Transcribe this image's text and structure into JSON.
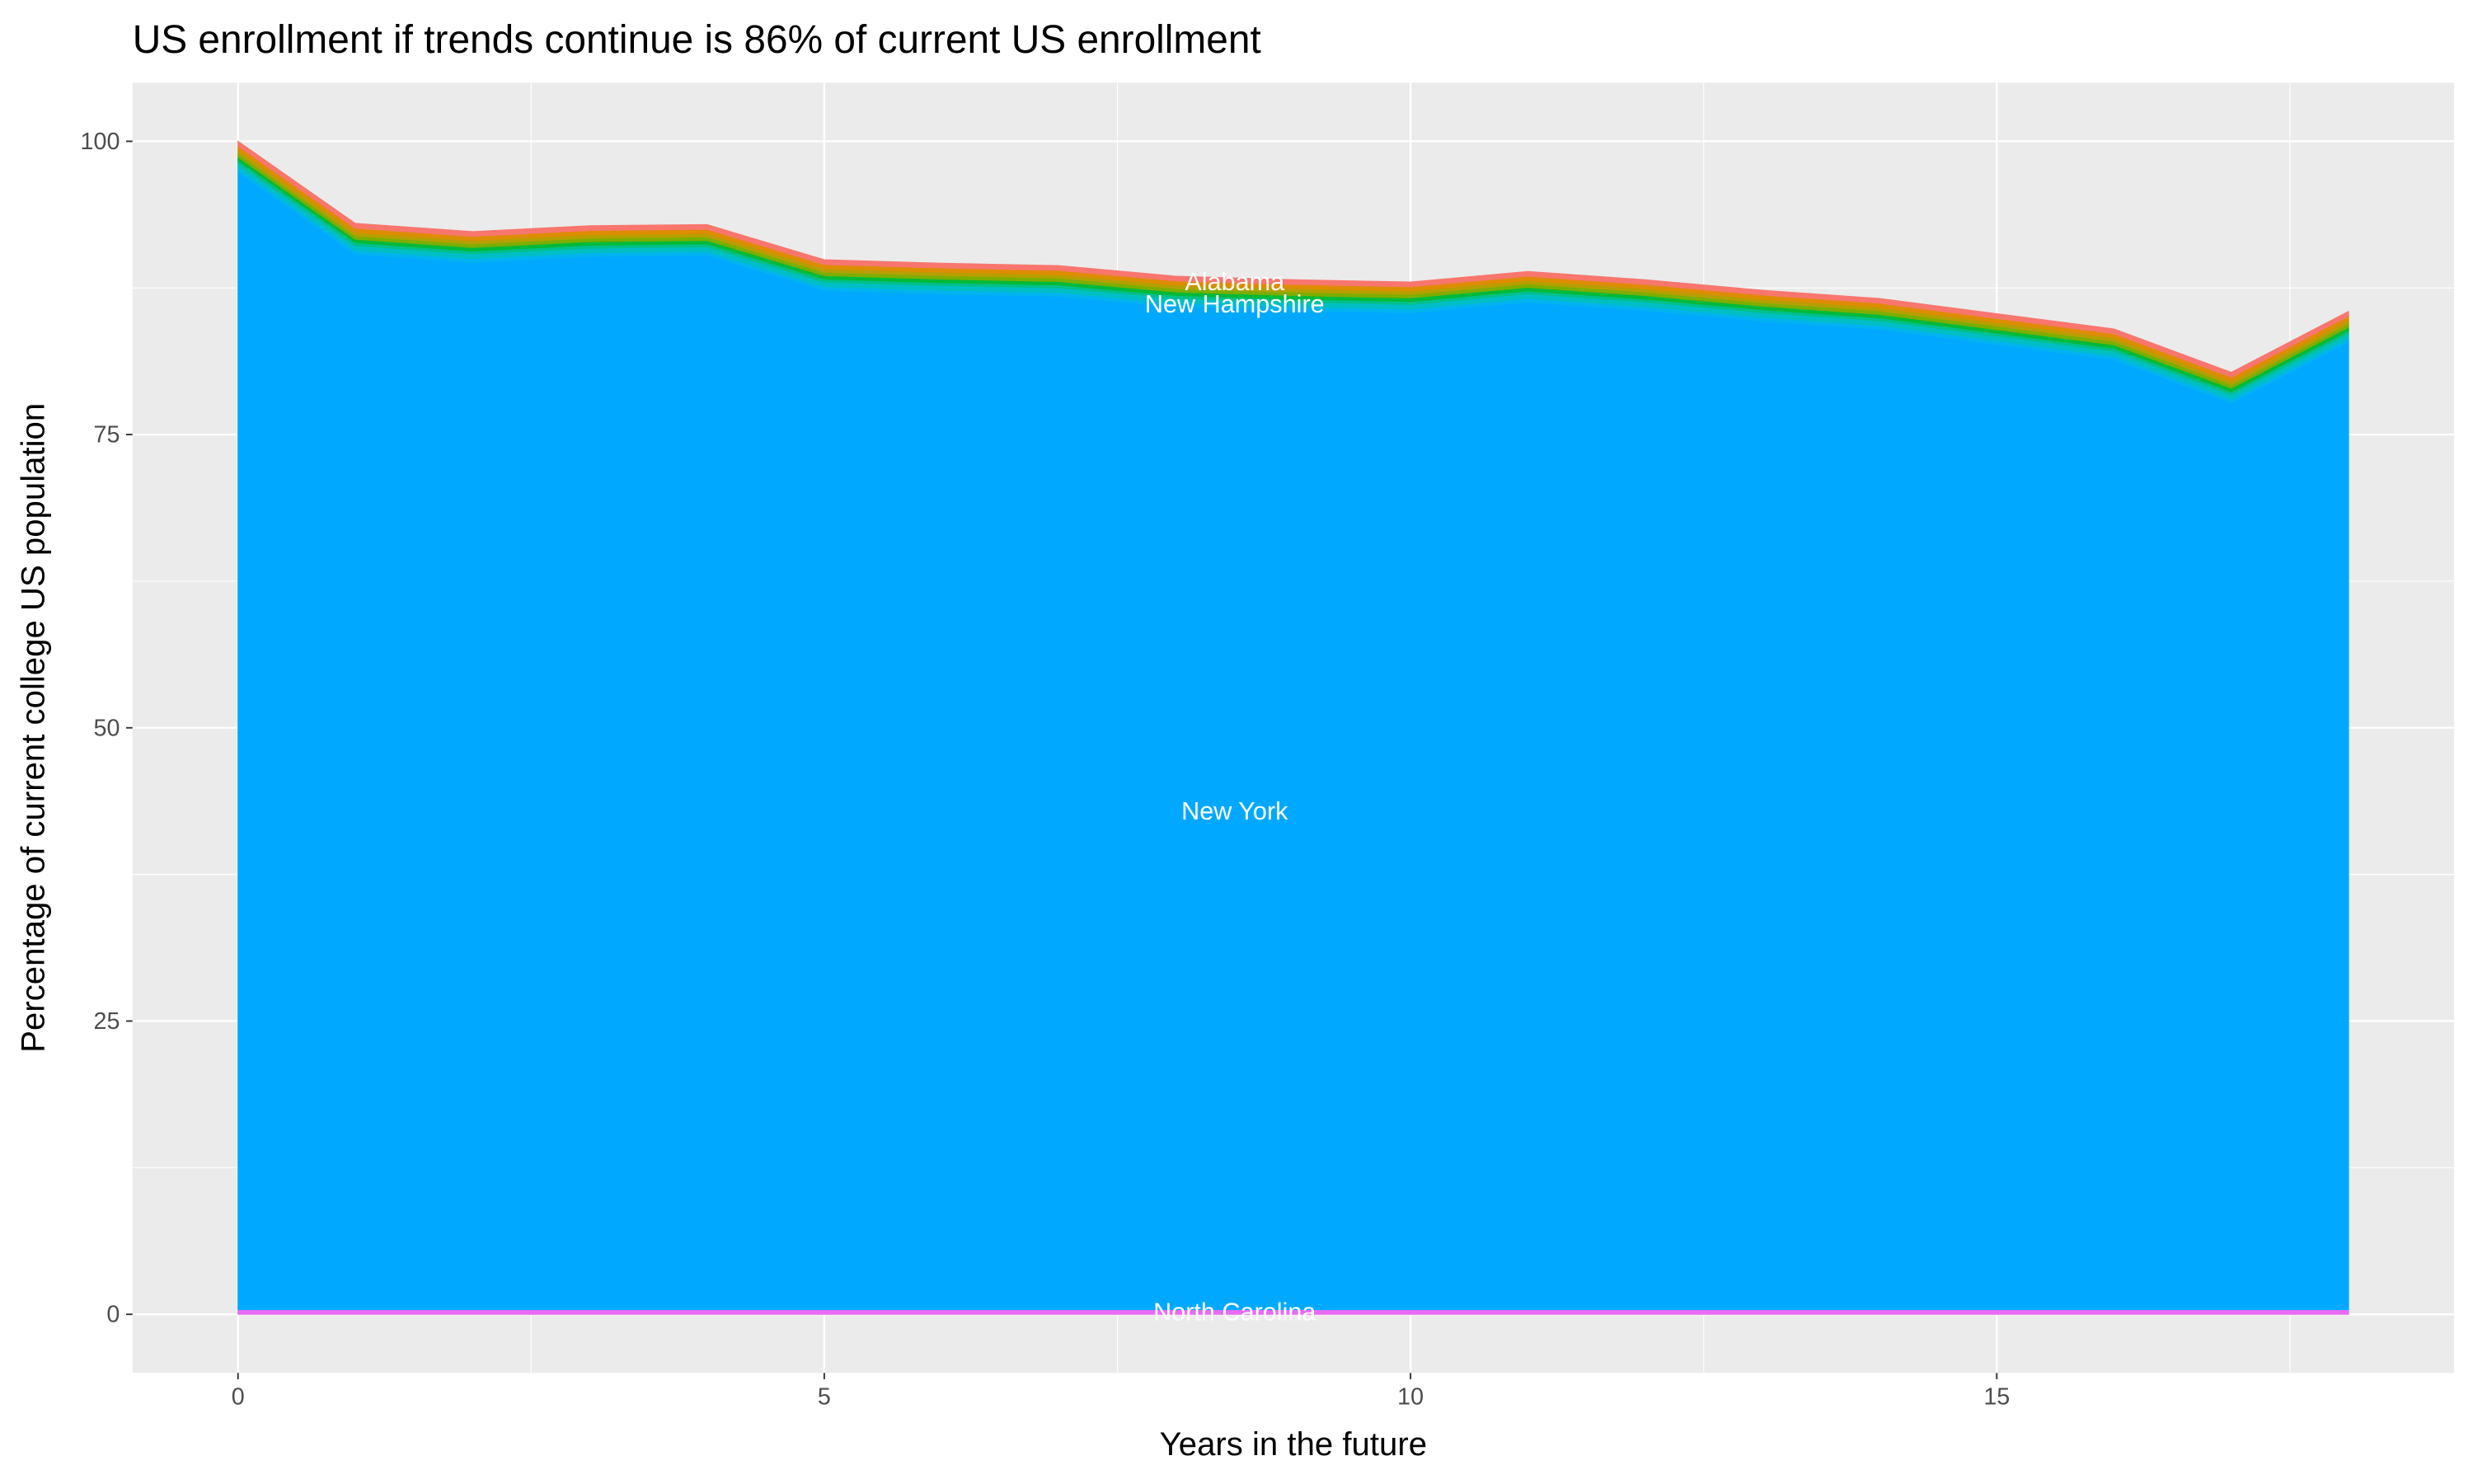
{
  "chart_data": {
    "type": "area",
    "stacked": true,
    "title": "US enrollment if trends continue is 86% of current US enrollment",
    "xlabel": "Years in the future",
    "ylabel": "Percentage of current college US population",
    "xlim": [
      -0.9,
      18.9
    ],
    "ylim": [
      -5,
      105
    ],
    "xticks": [
      0,
      5,
      10,
      15
    ],
    "yticks": [
      0,
      25,
      50,
      75,
      100
    ],
    "grid": true,
    "legend": "none",
    "background": "#EBEBEB",
    "x": [
      0,
      1,
      2,
      3,
      4,
      5,
      6,
      7,
      8,
      9,
      10,
      11,
      12,
      13,
      14,
      15,
      16,
      17,
      18
    ],
    "series": [
      {
        "name": "North Carolina",
        "color": "#E76BF3",
        "label_y": 0.3,
        "values": [
          0.4,
          0.4,
          0.4,
          0.4,
          0.4,
          0.4,
          0.4,
          0.4,
          0.4,
          0.4,
          0.4,
          0.4,
          0.4,
          0.4,
          0.4,
          0.4,
          0.4,
          0.4,
          0.4
        ]
      },
      {
        "name": "New York",
        "color": "#00A9FF",
        "label_y": 43,
        "values": [
          97.0,
          90.0,
          89.3,
          89.8,
          89.9,
          86.9,
          86.6,
          86.4,
          85.5,
          85.2,
          85.0,
          85.9,
          85.2,
          84.3,
          83.6,
          82.3,
          81.0,
          77.3,
          82.5
        ]
      },
      {
        "color": "#00B4F0",
        "values": [
          0.3,
          0.3,
          0.3,
          0.3,
          0.3,
          0.3,
          0.3,
          0.3,
          0.3,
          0.3,
          0.3,
          0.3,
          0.3,
          0.3,
          0.3,
          0.3,
          0.3,
          0.3,
          0.3
        ]
      },
      {
        "name": "New Hampshire",
        "color": "#00BFC4",
        "label_y": 86.2,
        "values": [
          0.4,
          0.4,
          0.4,
          0.4,
          0.4,
          0.4,
          0.4,
          0.4,
          0.4,
          0.4,
          0.4,
          0.4,
          0.4,
          0.4,
          0.4,
          0.4,
          0.4,
          0.4,
          0.4
        ]
      },
      {
        "color": "#00C08B",
        "values": [
          0.25,
          0.25,
          0.25,
          0.25,
          0.25,
          0.25,
          0.25,
          0.25,
          0.25,
          0.25,
          0.25,
          0.25,
          0.25,
          0.25,
          0.25,
          0.25,
          0.25,
          0.25,
          0.25
        ]
      },
      {
        "color": "#00BA38",
        "values": [
          0.3,
          0.3,
          0.3,
          0.3,
          0.3,
          0.3,
          0.3,
          0.3,
          0.3,
          0.3,
          0.3,
          0.3,
          0.3,
          0.3,
          0.3,
          0.3,
          0.3,
          0.3,
          0.3
        ]
      },
      {
        "color": "#7CAE00",
        "values": [
          0.3,
          0.3,
          0.3,
          0.3,
          0.3,
          0.3,
          0.3,
          0.3,
          0.3,
          0.3,
          0.3,
          0.3,
          0.3,
          0.3,
          0.3,
          0.3,
          0.3,
          0.3,
          0.3
        ]
      },
      {
        "color": "#B79F00",
        "values": [
          0.3,
          0.3,
          0.3,
          0.3,
          0.3,
          0.3,
          0.3,
          0.3,
          0.3,
          0.3,
          0.3,
          0.3,
          0.3,
          0.3,
          0.3,
          0.3,
          0.3,
          0.3,
          0.3
        ]
      },
      {
        "color": "#DE8C00",
        "values": [
          0.35,
          0.35,
          0.35,
          0.35,
          0.35,
          0.35,
          0.35,
          0.35,
          0.35,
          0.35,
          0.35,
          0.35,
          0.35,
          0.35,
          0.35,
          0.35,
          0.35,
          0.35,
          0.35
        ]
      },
      {
        "name": "Alabama",
        "color": "#F8766D",
        "label_y": 88.1,
        "values": [
          0.4,
          0.4,
          0.4,
          0.4,
          0.4,
          0.4,
          0.4,
          0.4,
          0.4,
          0.4,
          0.4,
          0.4,
          0.4,
          0.4,
          0.4,
          0.4,
          0.4,
          0.4,
          0.4
        ]
      }
    ],
    "label_x": 9
  }
}
